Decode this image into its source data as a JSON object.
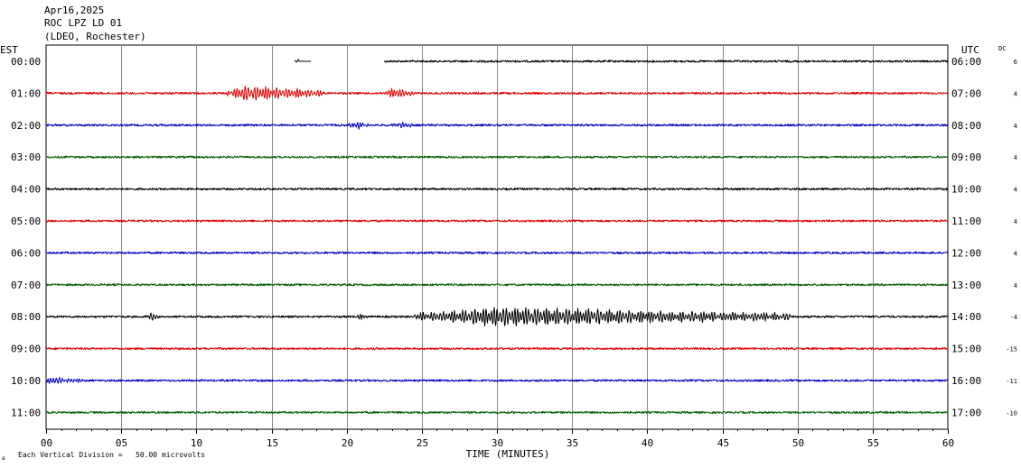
{
  "header": {
    "date": "Apr16,2025",
    "station": "ROC LPZ LD 01",
    "network": "(LDEO, Rochester)"
  },
  "labels": {
    "left_tz": "EST",
    "right_tz": "UTC",
    "dc": "DC",
    "footnote": "Each Vertical Division =   50.00 microvolts",
    "corner_mark": "a"
  },
  "chart_data": {
    "type": "line",
    "title": "",
    "xlabel": "TIME (MINUTES)",
    "ylabel": "",
    "xlim": [
      0,
      60
    ],
    "x_ticks": [
      "00",
      "05",
      "10",
      "15",
      "20",
      "25",
      "30",
      "35",
      "40",
      "45",
      "50",
      "55",
      "60"
    ],
    "grid": true,
    "rows": [
      {
        "est": "00:00",
        "utc": "06:00",
        "dc": "6",
        "color": "#000000"
      },
      {
        "est": "01:00",
        "utc": "07:00",
        "dc": "4",
        "color": "#e00000"
      },
      {
        "est": "02:00",
        "utc": "08:00",
        "dc": "4",
        "color": "#0000c0"
      },
      {
        "est": "03:00",
        "utc": "09:00",
        "dc": "4",
        "color": "#006000"
      },
      {
        "est": "04:00",
        "utc": "10:00",
        "dc": "4",
        "color": "#000000"
      },
      {
        "est": "05:00",
        "utc": "11:00",
        "dc": "4",
        "color": "#e00000"
      },
      {
        "est": "06:00",
        "utc": "12:00",
        "dc": "4",
        "color": "#0000c0"
      },
      {
        "est": "07:00",
        "utc": "13:00",
        "dc": "4",
        "color": "#006000"
      },
      {
        "est": "08:00",
        "utc": "14:00",
        "dc": "-4",
        "color": "#000000"
      },
      {
        "est": "09:00",
        "utc": "15:00",
        "dc": "-15",
        "color": "#e00000"
      },
      {
        "est": "10:00",
        "utc": "16:00",
        "dc": "-11",
        "color": "#0000c0"
      },
      {
        "est": "11:00",
        "utc": "17:00",
        "dc": "-10",
        "color": "#006000"
      }
    ],
    "first_row_data_start_min": 22.5,
    "marker_at_min": 17.5,
    "events": [
      {
        "row": 1,
        "start": 12.0,
        "end": 18.5,
        "peak": 13.2,
        "amp": 9
      },
      {
        "row": 1,
        "start": 22.5,
        "end": 24.5,
        "peak": 23.2,
        "amp": 6
      },
      {
        "row": 2,
        "start": 20.0,
        "end": 21.5,
        "peak": 20.8,
        "amp": 4
      },
      {
        "row": 2,
        "start": 23.0,
        "end": 24.5,
        "peak": 23.8,
        "amp": 3
      },
      {
        "row": 8,
        "start": 6.5,
        "end": 7.5,
        "peak": 7.0,
        "amp": 4
      },
      {
        "row": 8,
        "start": 20.5,
        "end": 21.5,
        "peak": 21.0,
        "amp": 3
      },
      {
        "row": 8,
        "start": 24.5,
        "end": 49.5,
        "peak": 30.0,
        "amp": 11
      },
      {
        "row": 10,
        "start": 0.0,
        "end": 2.5,
        "peak": 0.5,
        "amp": 4
      }
    ]
  }
}
